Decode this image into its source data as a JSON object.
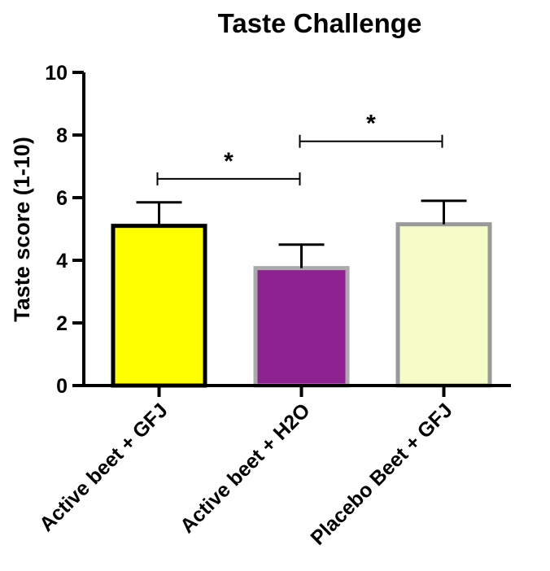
{
  "chart_data": {
    "type": "bar",
    "title": "Taste Challenge",
    "xlabel": "",
    "ylabel": "Taste score (1-10)",
    "ylim": [
      0,
      10
    ],
    "yticks": [
      "0",
      "2",
      "4",
      "6",
      "8",
      "10"
    ],
    "categories": [
      "Active beet + GFJ",
      "Active beet + H2O",
      "Placebo Beet + GFJ"
    ],
    "values": [
      5.1,
      3.75,
      5.15
    ],
    "errors": [
      0.75,
      0.75,
      0.75
    ],
    "fill_colors": [
      "#ffff00",
      "#8e2190",
      "#f5fcc8"
    ],
    "edge_colors": [
      "#000000",
      "#aaaaaa",
      "#999999"
    ],
    "significance": [
      {
        "from": 0,
        "to": 1,
        "y": 6.6,
        "label": "*"
      },
      {
        "from": 1,
        "to": 2,
        "y": 7.8,
        "label": "*"
      }
    ],
    "grid": false,
    "legend": "none"
  }
}
